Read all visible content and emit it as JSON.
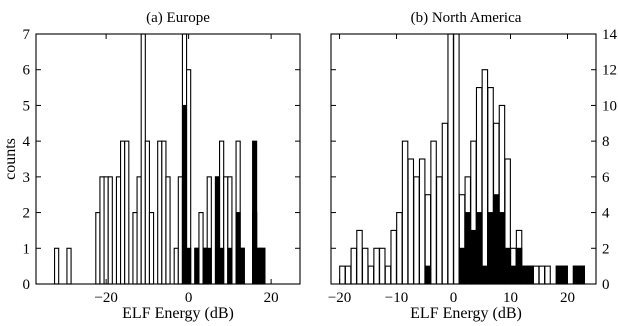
{
  "chart_data": [
    {
      "type": "bar",
      "title": "(a) Europe",
      "xlabel": "ELF Energy (dB)",
      "ylabel": "counts",
      "xlim": [
        -37,
        27
      ],
      "ylim": [
        0,
        7
      ],
      "xticks": [
        -20,
        0,
        20
      ],
      "yticks": [
        0,
        1,
        2,
        3,
        4,
        5,
        6,
        7
      ],
      "bin_width": 1,
      "series": [
        {
          "values": [
            {
              "x": -32,
              "y": 1
            },
            {
              "x": -29,
              "y": 1
            },
            {
              "x": -22,
              "y": 2
            },
            {
              "x": -21,
              "y": 3
            },
            {
              "x": -20,
              "y": 3
            },
            {
              "x": -19,
              "y": 3
            },
            {
              "x": -17,
              "y": 3
            },
            {
              "x": -16,
              "y": 4
            },
            {
              "x": -15,
              "y": 4
            },
            {
              "x": -13,
              "y": 2
            },
            {
              "x": -12,
              "y": 3
            },
            {
              "x": -11,
              "y": 7
            },
            {
              "x": -10,
              "y": 4
            },
            {
              "x": -9,
              "y": 2
            },
            {
              "x": -7,
              "y": 4
            },
            {
              "x": -6,
              "y": 4
            },
            {
              "x": -5,
              "y": 3
            },
            {
              "x": -3,
              "y": 1
            },
            {
              "x": -2,
              "y": 3
            },
            {
              "x": -1,
              "y": 7
            },
            {
              "x": 0,
              "y": 6
            },
            {
              "x": 2,
              "y": 1
            },
            {
              "x": 3,
              "y": 2
            },
            {
              "x": 4,
              "y": 1
            },
            {
              "x": 5,
              "y": 3
            },
            {
              "x": 7,
              "y": 3
            },
            {
              "x": 8,
              "y": 4
            },
            {
              "x": 9,
              "y": 3
            },
            {
              "x": 10,
              "y": 3
            },
            {
              "x": 12,
              "y": 4
            },
            {
              "x": 13,
              "y": 1
            },
            {
              "x": 16,
              "y": 2
            },
            {
              "x": 17,
              "y": 1
            },
            {
              "x": 18,
              "y": 1
            }
          ]
        },
        {
          "values": [
            {
              "x": -1,
              "y": 5
            },
            {
              "x": 0,
              "y": 1
            },
            {
              "x": 2,
              "y": 1
            },
            {
              "x": 4,
              "y": 1
            },
            {
              "x": 5,
              "y": 1
            },
            {
              "x": 7,
              "y": 3
            },
            {
              "x": 8,
              "y": 1
            },
            {
              "x": 10,
              "y": 1
            },
            {
              "x": 12,
              "y": 2
            },
            {
              "x": 13,
              "y": 1
            },
            {
              "x": 16,
              "y": 4
            },
            {
              "x": 17,
              "y": 1
            },
            {
              "x": 18,
              "y": 1
            }
          ]
        }
      ]
    },
    {
      "type": "bar",
      "title": "(b) North America",
      "xlabel": "ELF Energy (dB)",
      "ylabel": "",
      "xlim": [
        -21.5,
        25
      ],
      "ylim": [
        0,
        14
      ],
      "xticks": [
        -20,
        -10,
        0,
        10,
        20
      ],
      "yticks": [
        0,
        2,
        4,
        6,
        8,
        10,
        12,
        14
      ],
      "bin_width": 0.95,
      "series": [
        {
          "values": [
            {
              "x": -19.5,
              "y": 1
            },
            {
              "x": -18.5,
              "y": 1
            },
            {
              "x": -17.5,
              "y": 2
            },
            {
              "x": -16.5,
              "y": 3
            },
            {
              "x": -15.5,
              "y": 2
            },
            {
              "x": -14.5,
              "y": 1
            },
            {
              "x": -13.5,
              "y": 2
            },
            {
              "x": -12.5,
              "y": 2
            },
            {
              "x": -11.5,
              "y": 1
            },
            {
              "x": -10.5,
              "y": 3
            },
            {
              "x": -9.5,
              "y": 4
            },
            {
              "x": -8.5,
              "y": 8
            },
            {
              "x": -7.5,
              "y": 7
            },
            {
              "x": -6.5,
              "y": 6
            },
            {
              "x": -5.5,
              "y": 7
            },
            {
              "x": -4.5,
              "y": 5
            },
            {
              "x": -3.5,
              "y": 8
            },
            {
              "x": -2.5,
              "y": 6
            },
            {
              "x": -1.5,
              "y": 9
            },
            {
              "x": -0.5,
              "y": 14
            },
            {
              "x": 0.5,
              "y": 14
            },
            {
              "x": 1.5,
              "y": 5
            },
            {
              "x": 2.5,
              "y": 6
            },
            {
              "x": 3.5,
              "y": 8
            },
            {
              "x": 4.5,
              "y": 11
            },
            {
              "x": 5.5,
              "y": 12
            },
            {
              "x": 6.5,
              "y": 11
            },
            {
              "x": 7.5,
              "y": 9
            },
            {
              "x": 8.5,
              "y": 10
            },
            {
              "x": 9.5,
              "y": 7
            },
            {
              "x": 10.5,
              "y": 2
            },
            {
              "x": 11.5,
              "y": 3
            },
            {
              "x": 12.5,
              "y": 1
            },
            {
              "x": 13.5,
              "y": 1
            },
            {
              "x": 14.5,
              "y": 1
            },
            {
              "x": 15.5,
              "y": 1
            },
            {
              "x": 16.5,
              "y": 1
            },
            {
              "x": 18.5,
              "y": 1
            },
            {
              "x": 19.5,
              "y": 1
            },
            {
              "x": 21.5,
              "y": 1
            },
            {
              "x": 22.5,
              "y": 1
            }
          ]
        },
        {
          "values": [
            {
              "x": -4.5,
              "y": 1
            },
            {
              "x": 1.5,
              "y": 2
            },
            {
              "x": 2.5,
              "y": 4
            },
            {
              "x": 3.5,
              "y": 3
            },
            {
              "x": 4.5,
              "y": 4
            },
            {
              "x": 5.5,
              "y": 1
            },
            {
              "x": 6.5,
              "y": 4
            },
            {
              "x": 7.5,
              "y": 5
            },
            {
              "x": 8.5,
              "y": 4
            },
            {
              "x": 9.5,
              "y": 2
            },
            {
              "x": 10.5,
              "y": 1
            },
            {
              "x": 11.5,
              "y": 2
            },
            {
              "x": 12.5,
              "y": 1
            },
            {
              "x": 13.5,
              "y": 1
            },
            {
              "x": 18.5,
              "y": 1
            },
            {
              "x": 19.5,
              "y": 1
            },
            {
              "x": 21.5,
              "y": 1
            },
            {
              "x": 22.5,
              "y": 1
            }
          ]
        }
      ]
    }
  ]
}
